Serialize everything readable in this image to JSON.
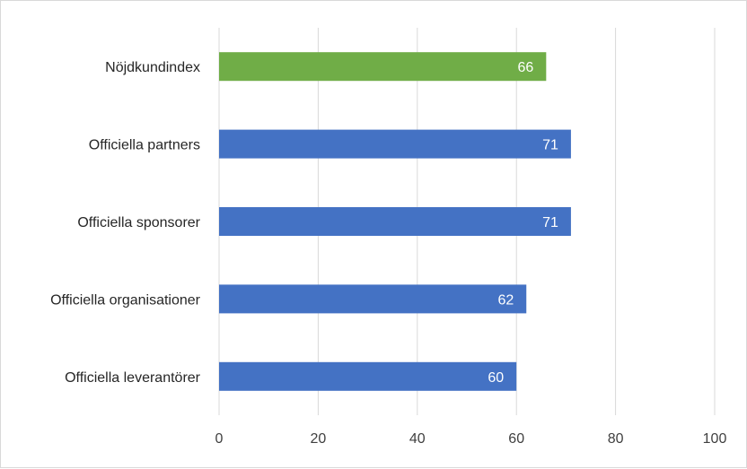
{
  "chart_data": {
    "type": "bar",
    "orientation": "horizontal",
    "categories": [
      "Nöjdkundindex",
      "Officiella partners",
      "Officiella sponsorer",
      "Officiella organisationer",
      "Officiella leverantörer"
    ],
    "values": [
      66,
      71,
      71,
      62,
      60
    ],
    "bar_colors": [
      "#70ad47",
      "#4472c4",
      "#4472c4",
      "#4472c4",
      "#4472c4"
    ],
    "data_labels": [
      "66",
      "71",
      "71",
      "62",
      "60"
    ],
    "title": "",
    "xlabel": "",
    "ylabel": "",
    "xlim": [
      0,
      100
    ],
    "x_ticks": [
      0,
      20,
      40,
      60,
      80,
      100
    ],
    "grid": "vertical",
    "legend": "none"
  }
}
